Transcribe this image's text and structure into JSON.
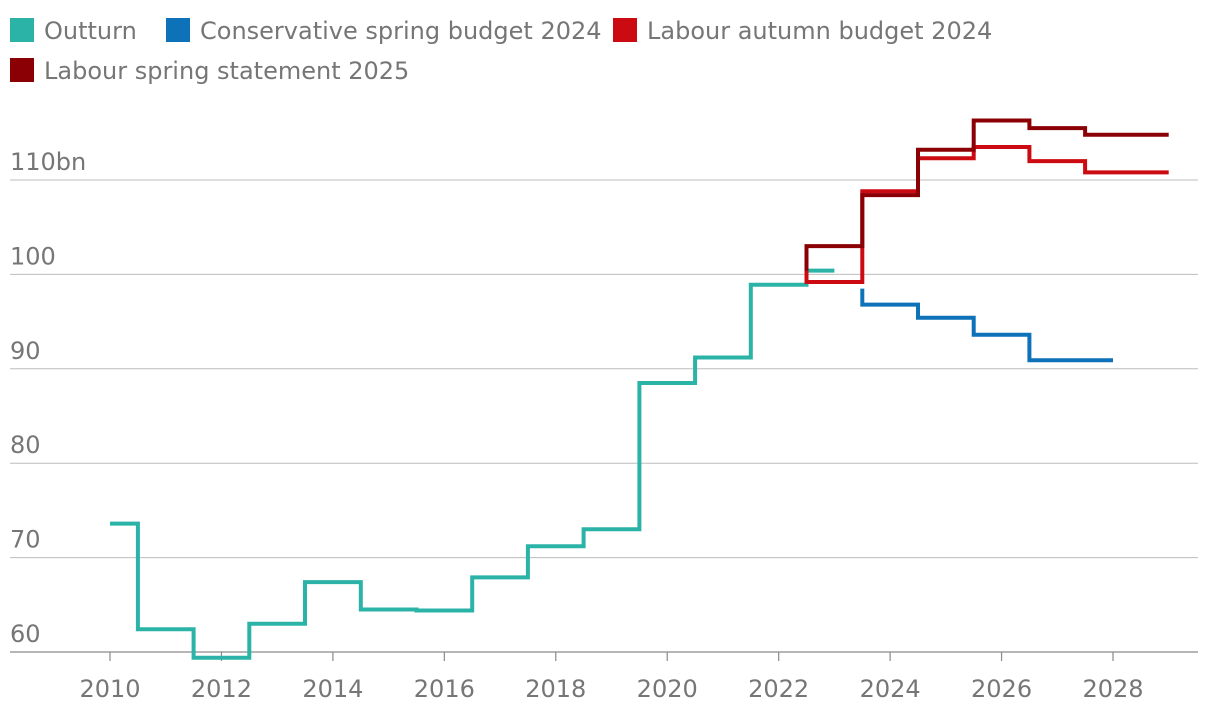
{
  "chart_data": {
    "type": "line",
    "step": true,
    "title": "",
    "xlabel": "",
    "ylabel": "",
    "ylim": [
      58.5,
      117
    ],
    "xlim": [
      2009.3,
      2029.9
    ],
    "y_ticks": [
      {
        "value": 60,
        "label": "60"
      },
      {
        "value": 70,
        "label": "70"
      },
      {
        "value": 80,
        "label": "80"
      },
      {
        "value": 90,
        "label": "90"
      },
      {
        "value": 100,
        "label": "100"
      },
      {
        "value": 110,
        "label": "110bn"
      }
    ],
    "x_ticks": [
      {
        "value": 2010,
        "label": "2010"
      },
      {
        "value": 2012,
        "label": "2012"
      },
      {
        "value": 2014,
        "label": "2014"
      },
      {
        "value": 2016,
        "label": "2016"
      },
      {
        "value": 2018,
        "label": "2018"
      },
      {
        "value": 2020,
        "label": "2020"
      },
      {
        "value": 2022,
        "label": "2022"
      },
      {
        "value": 2024,
        "label": "2024"
      },
      {
        "value": 2026,
        "label": "2026"
      },
      {
        "value": 2028,
        "label": "2028"
      }
    ],
    "legend_position": "top-left",
    "series": [
      {
        "name": "Outturn",
        "color": "#2bb3a8",
        "x": [
          2010,
          2011,
          2012,
          2013,
          2014,
          2015,
          2016,
          2017,
          2018,
          2019,
          2020,
          2021,
          2022,
          2023
        ],
        "values": [
          73.6,
          62.4,
          59.4,
          63.0,
          67.4,
          64.5,
          64.4,
          67.9,
          71.2,
          73.0,
          88.5,
          91.2,
          98.9,
          100.4
        ],
        "end_x": 2023
      },
      {
        "name": "Conservative spring budget 2024",
        "color": "#0d72b8",
        "x": [
          2024,
          2025,
          2026,
          2027,
          2028
        ],
        "values": [
          96.8,
          95.4,
          93.6,
          90.9,
          90.9
        ],
        "start_value": 98.5,
        "end_x": 2028
      },
      {
        "name": "Labour autumn budget 2024",
        "color": "#cc0a11",
        "x": [
          2023,
          2024,
          2025,
          2026,
          2027,
          2028,
          2029
        ],
        "values": [
          99.2,
          108.8,
          112.3,
          113.5,
          112.0,
          110.8,
          110.8
        ],
        "start_value": 102.5,
        "end_x": 2029
      },
      {
        "name": "Labour spring statement 2025",
        "color": "#8b0005",
        "x": [
          2023,
          2024,
          2025,
          2026,
          2027,
          2028,
          2029
        ],
        "values": [
          103.0,
          108.4,
          113.2,
          116.3,
          115.5,
          114.8,
          114.8
        ],
        "start_value": 100.4,
        "end_x": 2029
      }
    ]
  }
}
